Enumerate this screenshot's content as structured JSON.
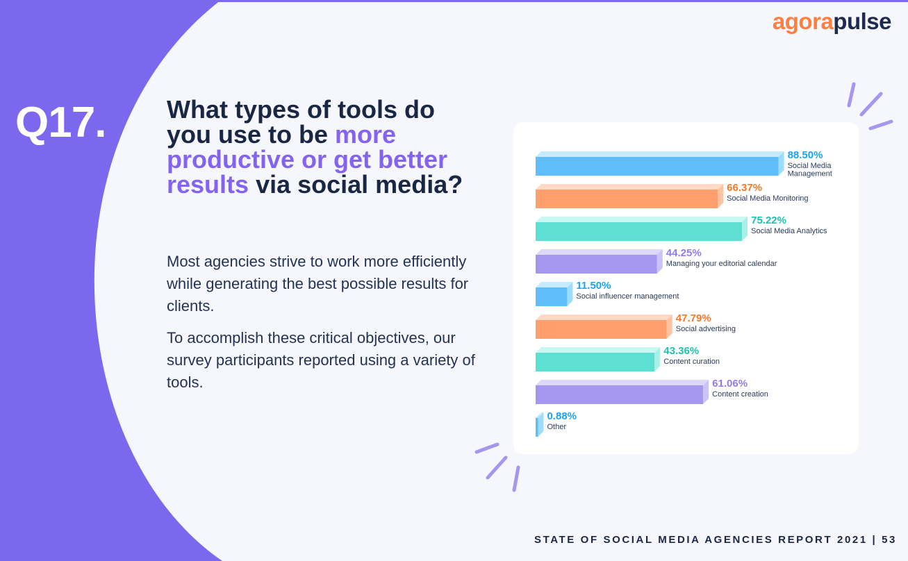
{
  "brand": {
    "part1": "agora",
    "part2": "pulse"
  },
  "question_number": "Q17.",
  "title": {
    "part1": "What types of tools do you use to be ",
    "highlight": "more productive or get better results",
    "part2": " via social media?"
  },
  "body": [
    "Most agencies strive to work more efficiently while generating the best possible results for clients.",
    "To accomplish these critical objectives, our survey participants reported using a variety of tools."
  ],
  "footer": "STATE OF SOCIAL MEDIA AGENCIES REPORT 2021 | 53",
  "colors": {
    "blue": "#5fbdf7",
    "orange": "#ff9f6e",
    "teal": "#5de0d2",
    "purple": "#a596f0",
    "background_purple": "#7b68ee"
  },
  "chart_data": {
    "type": "bar",
    "orientation": "horizontal",
    "xlim": [
      0,
      100
    ],
    "categories": [
      "Social Media Management",
      "Social Media Monitoring",
      "Social Media Analytics",
      "Managing your editorial calendar",
      "Social influencer management",
      "Social advertising",
      "Content curation",
      "Content creation",
      "Other"
    ],
    "values": [
      88.5,
      66.37,
      75.22,
      44.25,
      11.5,
      47.79,
      43.36,
      61.06,
      0.88
    ],
    "value_labels": [
      "88.50%",
      "66.37%",
      "75.22%",
      "44.25%",
      "11.50%",
      "47.79%",
      "43.36%",
      "61.06%",
      "0.88%"
    ],
    "bar_colors": [
      "blue",
      "orange",
      "teal",
      "purple",
      "blue",
      "orange",
      "teal",
      "purple",
      "blue"
    ],
    "label_lines": [
      [
        "Social Media",
        "Management"
      ],
      [
        "Social Media Monitoring"
      ],
      [
        "Social Media Analytics"
      ],
      [
        "Managing your editorial calendar"
      ],
      [
        "Social influencer management"
      ],
      [
        "Social advertising"
      ],
      [
        "Content curation"
      ],
      [
        "Content creation"
      ],
      [
        "Other"
      ]
    ]
  }
}
